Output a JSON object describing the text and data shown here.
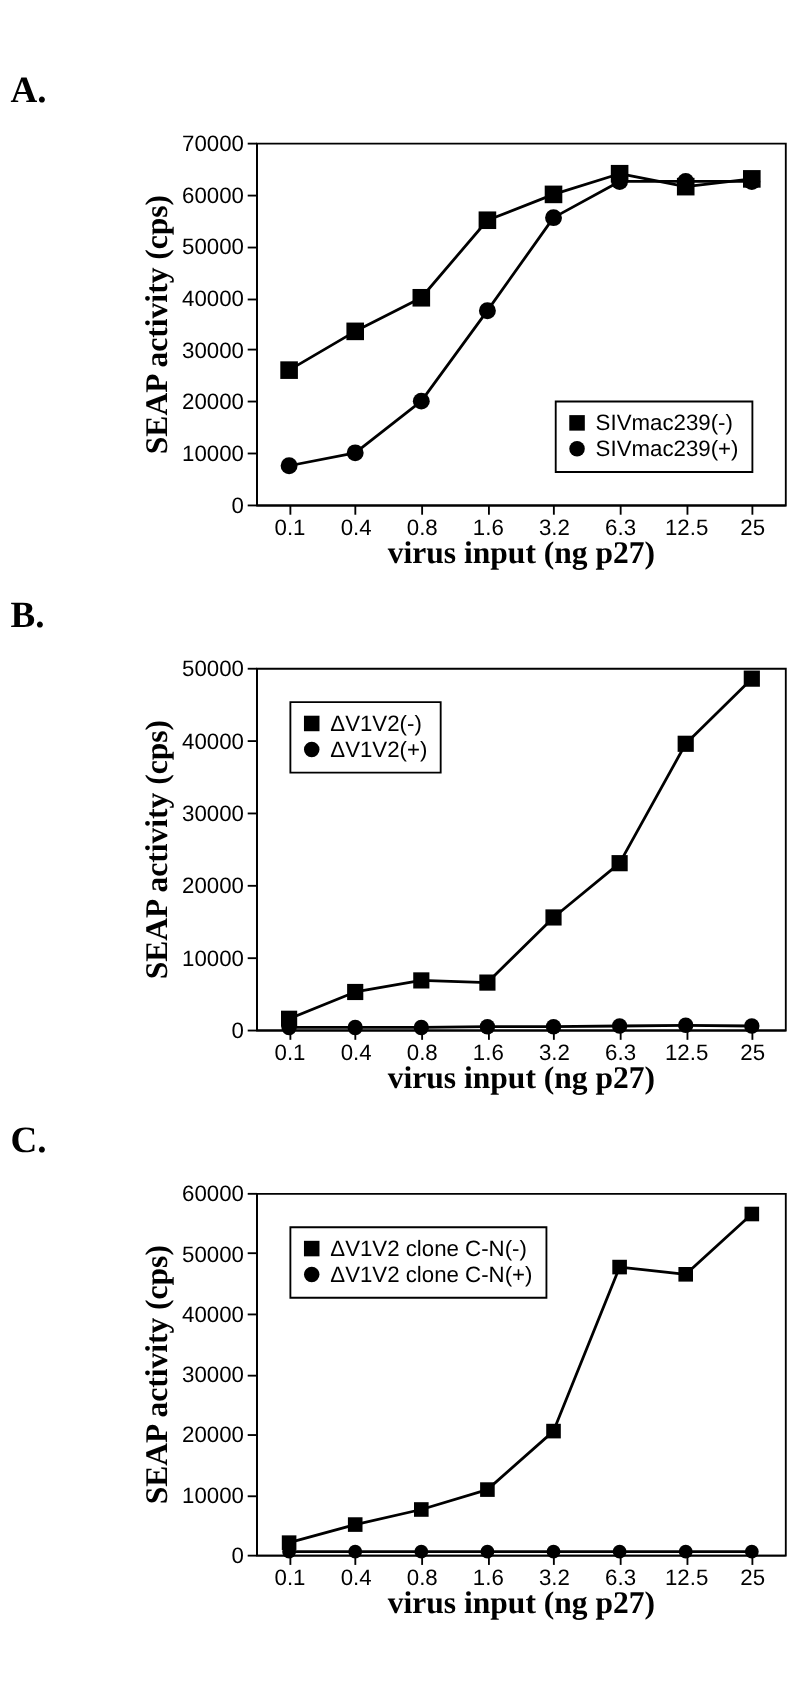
{
  "chart_data": [
    {
      "type": "line",
      "title": "A.",
      "xlabel": "virus input (ng p27)",
      "ylabel": "SEAP activity (cps)",
      "categories": [
        "0.1",
        "0.4",
        "0.8",
        "1.6",
        "3.2",
        "6.3",
        "12.5",
        "25"
      ],
      "ylim": [
        0,
        70000
      ],
      "yticks": [
        0,
        10000,
        20000,
        30000,
        40000,
        50000,
        60000,
        70000
      ],
      "legend": "bottom right",
      "grid": false,
      "series": [
        {
          "name": "SIVmac239(-)",
          "color": "#000000",
          "marker": "square",
          "values": [
            26000,
            33500,
            40000,
            55000,
            60000,
            64000,
            61500,
            63000
          ]
        },
        {
          "name": "SIVmac239(+)",
          "color": "#000000",
          "marker": "circle",
          "values": [
            7500,
            10000,
            20000,
            37500,
            55500,
            62500,
            62500,
            62500
          ]
        }
      ]
    },
    {
      "type": "line",
      "title": "B.",
      "xlabel": "virus input (ng p27)",
      "ylabel": "SEAP activity (cps)",
      "categories": [
        "0.1",
        "0.4",
        "0.8",
        "1.6",
        "3.2",
        "6.3",
        "12.5",
        "25"
      ],
      "ylim": [
        0,
        50000
      ],
      "yticks": [
        0,
        10000,
        20000,
        30000,
        40000,
        50000
      ],
      "legend": "top left",
      "grid": false,
      "series": [
        {
          "name": "ΔV1V2(-)",
          "color": "#000000",
          "marker": "square",
          "values": [
            1500,
            5200,
            6800,
            6500,
            15500,
            23000,
            39500,
            48500
          ]
        },
        {
          "name": "ΔV1V2(+)",
          "color": "#000000",
          "marker": "circle",
          "values": [
            300,
            300,
            300,
            400,
            400,
            500,
            600,
            500
          ]
        }
      ]
    },
    {
      "type": "line",
      "title": "C.",
      "xlabel": "virus input (ng p27)",
      "ylabel": "SEAP activity (cps)",
      "categories": [
        "0.1",
        "0.4",
        "0.8",
        "1.6",
        "3.2",
        "6.3",
        "12.5",
        "25"
      ],
      "ylim": [
        0,
        60000
      ],
      "yticks": [
        0,
        10000,
        20000,
        30000,
        40000,
        50000,
        60000
      ],
      "legend": "top left",
      "grid": false,
      "series": [
        {
          "name": "ΔV1V2 clone C-N(-)",
          "color": "#000000",
          "marker": "square",
          "values": [
            2000,
            5000,
            7500,
            10800,
            20500,
            47700,
            46500,
            56500
          ]
        },
        {
          "name": "ΔV1V2 clone C-N(+)",
          "color": "#000000",
          "marker": "circle",
          "values": [
            500,
            500,
            500,
            500,
            500,
            500,
            500,
            500
          ]
        }
      ]
    }
  ]
}
